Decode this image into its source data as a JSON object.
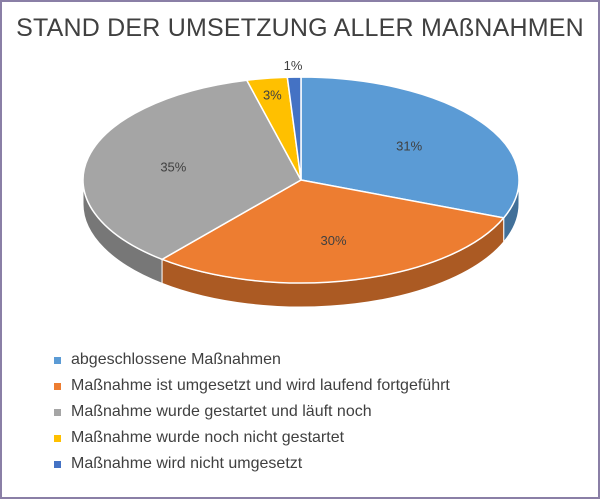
{
  "chart_data": {
    "type": "pie",
    "title": "STAND DER UMSETZUNG ALLER MAßNAHMEN",
    "slices": [
      {
        "label": "abgeschlossene Maßnahmen",
        "value": 31,
        "display": "31%",
        "color": "#5b9bd5"
      },
      {
        "label": "Maßnahme ist umgesetzt und wird laufend fortgeführt",
        "value": 30,
        "display": "30%",
        "color": "#ed7d31"
      },
      {
        "label": "Maßnahme wurde gestartet und läuft noch",
        "value": 35,
        "display": "35%",
        "color": "#a5a5a5"
      },
      {
        "label": "Maßnahme wurde noch nicht gestartet",
        "value": 3,
        "display": "3%",
        "color": "#ffc000"
      },
      {
        "label": "Maßnahme wird nicht umgesetzt",
        "value": 1,
        "display": "1%",
        "color": "#4472c4"
      }
    ],
    "legend_position": "bottom"
  }
}
